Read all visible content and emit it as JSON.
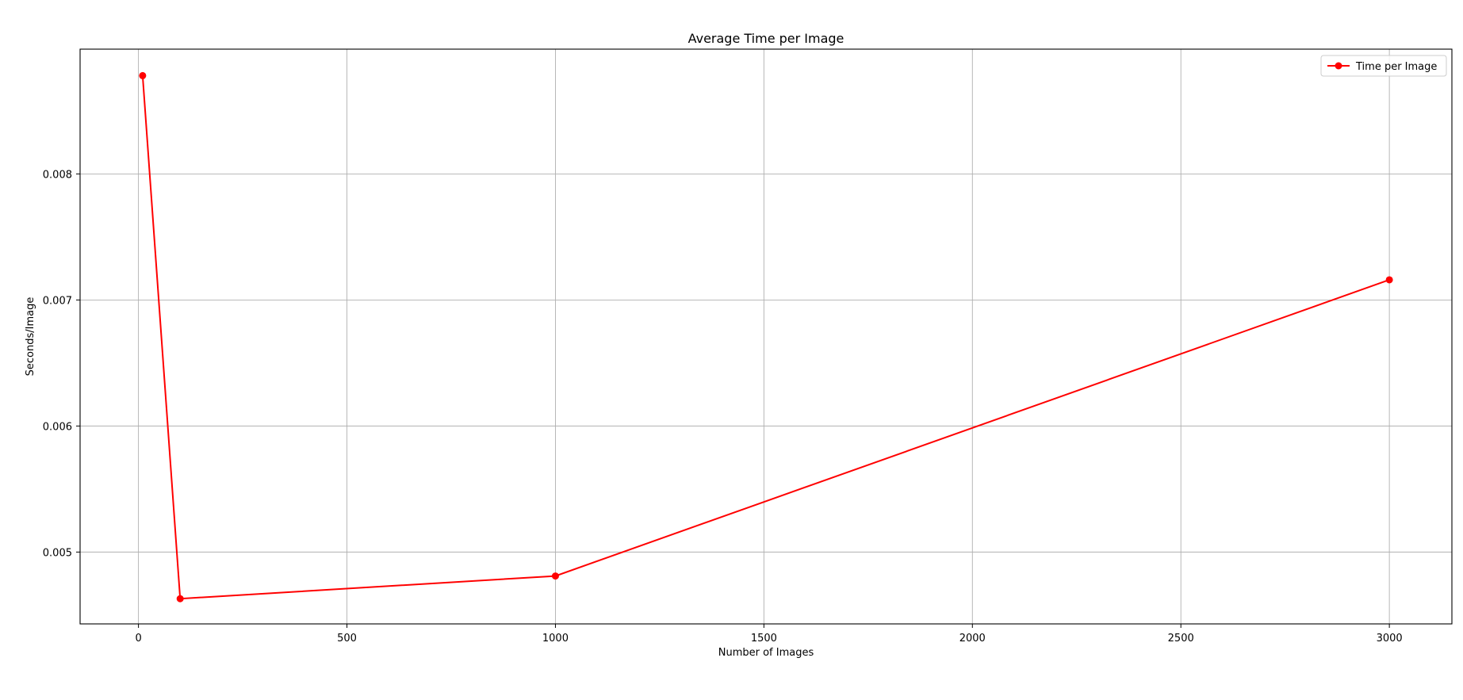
{
  "colors": {
    "series": "#ff0000",
    "grid": "#b0b0b0",
    "axes": "#000000",
    "legend_border": "#cccccc",
    "background": "#ffffff"
  },
  "chart_data": {
    "type": "line",
    "title": "Average Time per Image",
    "xlabel": "Number of Images",
    "ylabel": "Seconds/Image",
    "xlim": [
      -140,
      3150
    ],
    "ylim": [
      0.00443,
      0.00899
    ],
    "xticks": [
      0,
      500,
      1000,
      1500,
      2000,
      2500,
      3000
    ],
    "xtick_labels": [
      "0",
      "500",
      "1000",
      "1500",
      "2000",
      "2500",
      "3000"
    ],
    "yticks": [
      0.005,
      0.006,
      0.007,
      0.008
    ],
    "ytick_labels": [
      "0.005",
      "0.006",
      "0.007",
      "0.008"
    ],
    "grid": true,
    "legend_position": "top-right",
    "marker": "circle",
    "series": [
      {
        "name": "Time per Image",
        "x": [
          10,
          100,
          1000,
          3000
        ],
        "y": [
          0.00878,
          0.00463,
          0.00481,
          0.00716
        ]
      }
    ]
  }
}
